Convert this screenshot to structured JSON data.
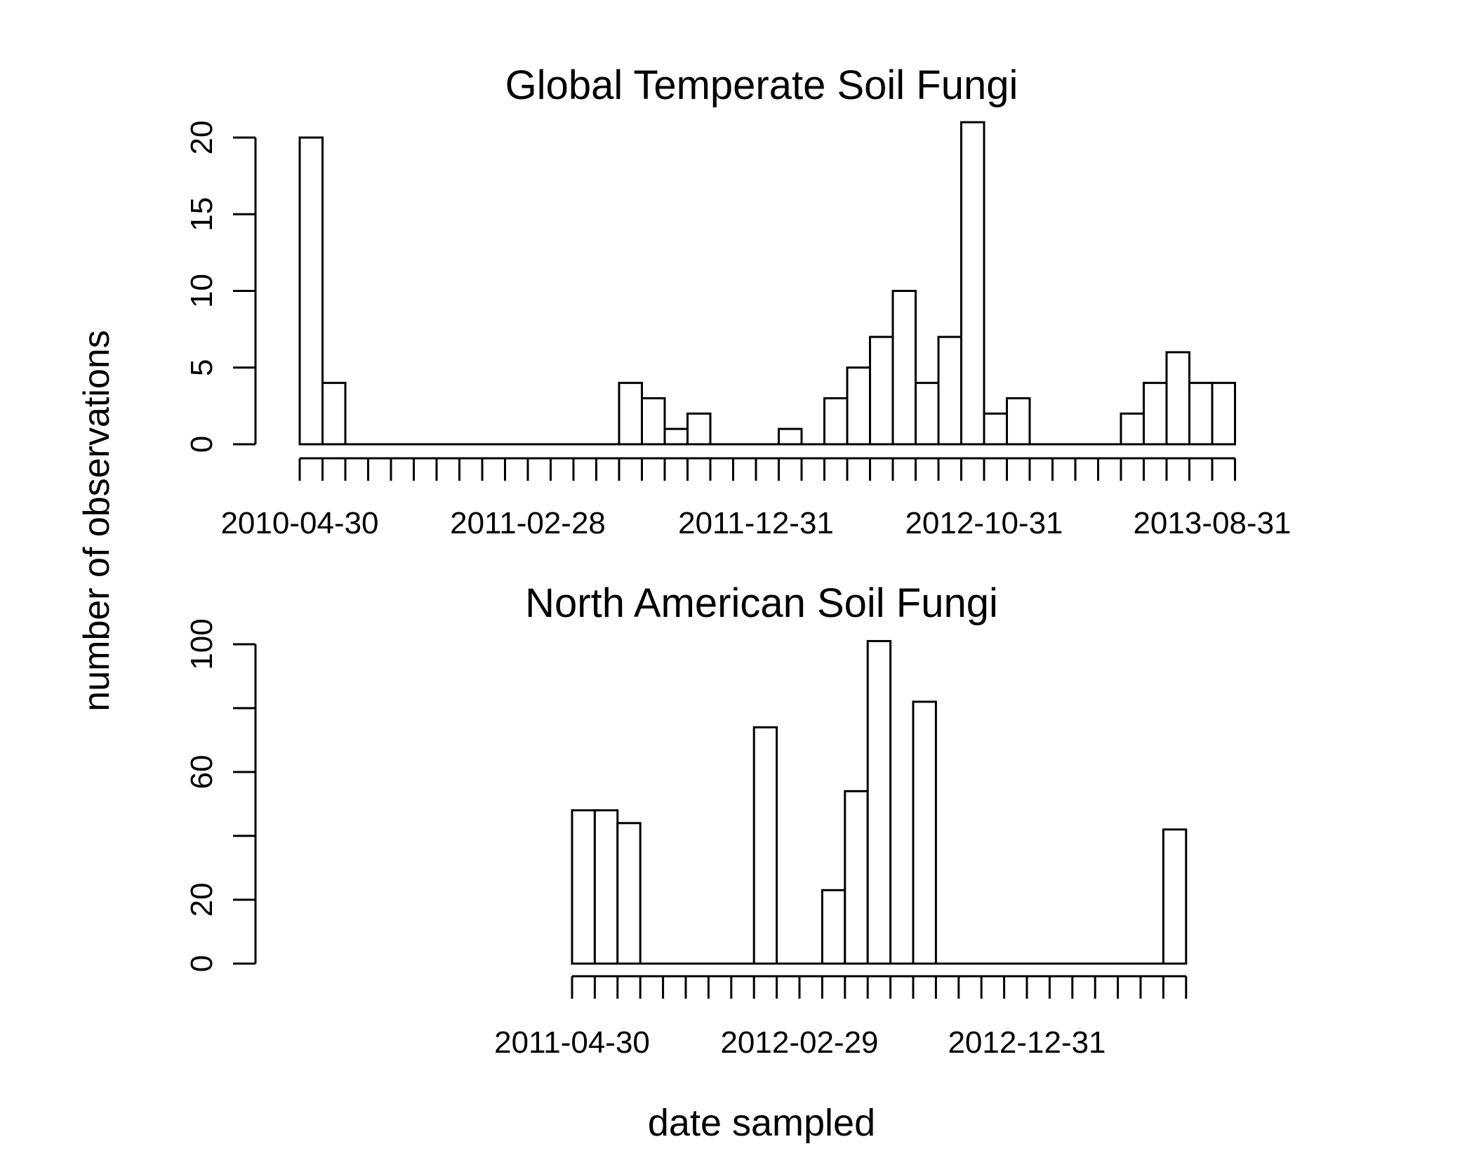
{
  "figure": {
    "ylabel": "number of observations",
    "xlabel": "date sampled"
  },
  "chart_data": [
    {
      "type": "bar",
      "title": "Global Temperate Soil Fungi",
      "xlabel": "date sampled",
      "ylabel": "number of observations",
      "categories": [
        "2010-04-30",
        "2010-05-31",
        "2010-06-30",
        "2010-07-31",
        "2010-08-31",
        "2010-09-30",
        "2010-10-31",
        "2010-11-30",
        "2010-12-31",
        "2011-01-31",
        "2011-02-28",
        "2011-03-31",
        "2011-04-30",
        "2011-05-31",
        "2011-06-30",
        "2011-07-31",
        "2011-08-31",
        "2011-09-30",
        "2011-10-31",
        "2011-11-30",
        "2011-12-31",
        "2012-01-31",
        "2012-02-29",
        "2012-03-31",
        "2012-04-30",
        "2012-05-31",
        "2012-06-30",
        "2012-07-31",
        "2012-08-31",
        "2012-09-30",
        "2012-10-31",
        "2012-11-30",
        "2012-12-31",
        "2013-01-31",
        "2013-02-28",
        "2013-03-31",
        "2013-04-30",
        "2013-05-31",
        "2013-06-30",
        "2013-07-31",
        "2013-08-31"
      ],
      "values": [
        20,
        4,
        0,
        0,
        0,
        0,
        0,
        0,
        0,
        0,
        0,
        0,
        0,
        0,
        4,
        3,
        1,
        2,
        0,
        0,
        0,
        1,
        0,
        3,
        5,
        7,
        10,
        4,
        7,
        21,
        2,
        3,
        0,
        0,
        0,
        0,
        2,
        4,
        6,
        4,
        4
      ],
      "x_tick_labels": [
        "2010-04-30",
        "2011-02-28",
        "2011-12-31",
        "2012-10-31",
        "2013-08-31"
      ],
      "y_ticks": [
        0,
        5,
        10,
        15,
        20
      ],
      "ylim": [
        0,
        21
      ],
      "grid": false
    },
    {
      "type": "bar",
      "title": "North American Soil Fungi",
      "xlabel": "date sampled",
      "ylabel": "number of observations",
      "categories": [
        "2011-04-30",
        "2011-05-31",
        "2011-06-30",
        "2011-07-31",
        "2011-08-31",
        "2011-09-30",
        "2011-10-31",
        "2011-11-30",
        "2011-12-31",
        "2012-01-31",
        "2012-02-29",
        "2012-03-31",
        "2012-04-30",
        "2012-05-31",
        "2012-06-30",
        "2012-07-31",
        "2012-08-31",
        "2012-09-30",
        "2012-10-31",
        "2012-11-30",
        "2012-12-31",
        "2013-01-31",
        "2013-02-28",
        "2013-03-31",
        "2013-04-30",
        "2013-05-31",
        "2013-06-30"
      ],
      "values": [
        48,
        48,
        44,
        0,
        0,
        0,
        0,
        0,
        74,
        0,
        0,
        23,
        54,
        101,
        0,
        82,
        0,
        0,
        0,
        0,
        0,
        0,
        0,
        0,
        0,
        0,
        42
      ],
      "x_tick_labels": [
        "2011-04-30",
        "2012-02-29",
        "2012-12-31"
      ],
      "y_ticks": [
        0,
        20,
        40,
        60,
        80,
        100
      ],
      "y_tick_labels": [
        "0",
        "20",
        "",
        "60",
        "",
        "100"
      ],
      "ylim": [
        0,
        101
      ],
      "grid": false
    }
  ]
}
